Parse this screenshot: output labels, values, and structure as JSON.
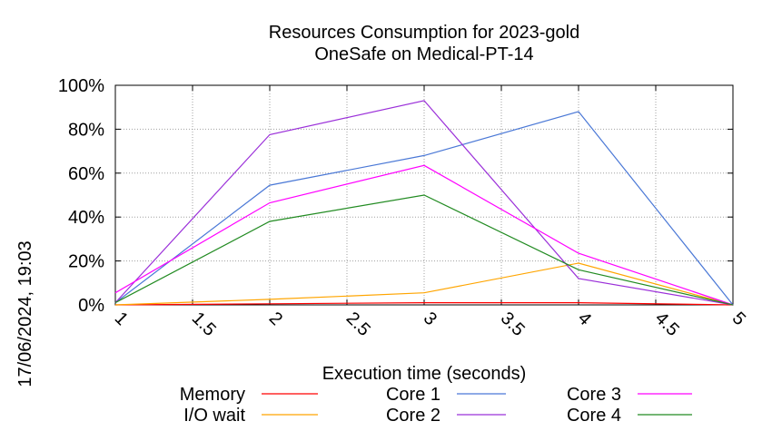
{
  "chart_data": {
    "type": "line",
    "title": "Resources Consumption for 2023-gold",
    "subtitle": "OneSafe on Medical-PT-14",
    "xlabel": "Execution time (seconds)",
    "ylabel": "",
    "side_label": "17/06/2024, 19:03",
    "xlim": [
      1,
      5
    ],
    "ylim": [
      0,
      100
    ],
    "x_ticks": [
      1,
      1.5,
      2,
      2.5,
      3,
      3.5,
      4,
      4.5,
      5
    ],
    "x_tick_labels": [
      "1",
      "1.5",
      "2",
      "2.5",
      "3",
      "3.5",
      "4",
      "4.5",
      "5"
    ],
    "y_ticks": [
      0,
      20,
      40,
      60,
      80,
      100
    ],
    "y_tick_labels": [
      "0%",
      "20%",
      "40%",
      "60%",
      "80%",
      "100%"
    ],
    "grid": true,
    "legend_position": "bottom",
    "x": [
      1,
      2,
      3,
      4,
      5
    ],
    "series": [
      {
        "name": "Memory",
        "color": "#ff0000",
        "values": [
          0,
          0.5,
          1,
          1,
          0
        ]
      },
      {
        "name": "I/O wait",
        "color": "#ffa500",
        "values": [
          0,
          2.5,
          5.5,
          19,
          0
        ]
      },
      {
        "name": "Core 1",
        "color": "#4a78d6",
        "values": [
          1,
          54.5,
          68,
          88,
          0
        ]
      },
      {
        "name": "Core 2",
        "color": "#9b30d9",
        "values": [
          1,
          77.5,
          93,
          12,
          0
        ]
      },
      {
        "name": "Core 3",
        "color": "#ff00ff",
        "values": [
          5.5,
          46.5,
          63.5,
          23.5,
          0
        ]
      },
      {
        "name": "Core 4",
        "color": "#228b22",
        "values": [
          1,
          38,
          50,
          16,
          0
        ]
      }
    ]
  }
}
